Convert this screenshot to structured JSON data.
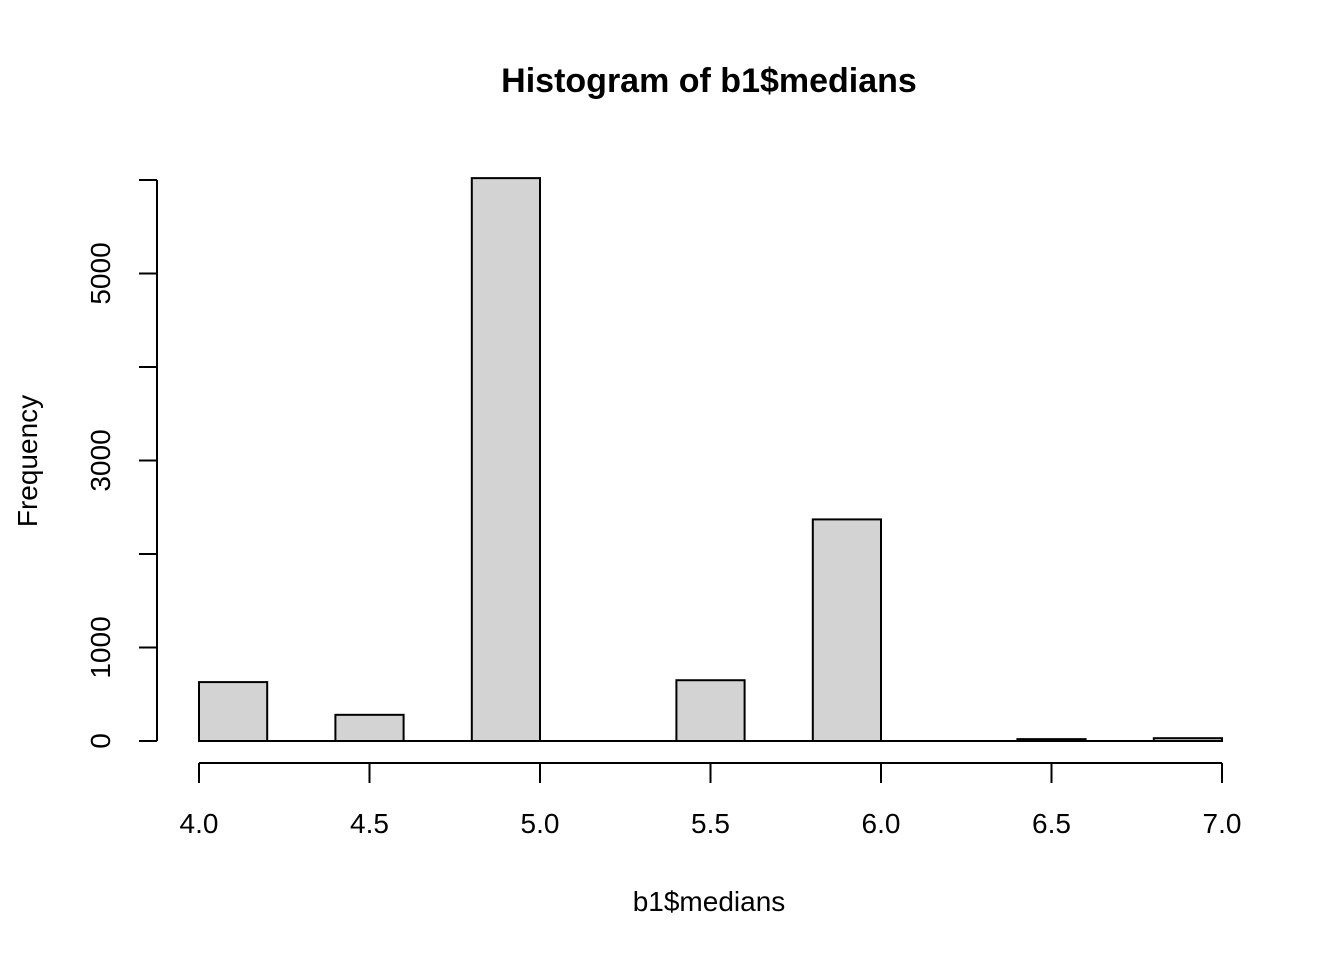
{
  "chart_data": {
    "type": "bar",
    "title": "Histogram of b1$medians",
    "xlabel": "b1$medians",
    "ylabel": "Frequency",
    "bin_width": 0.2,
    "bins": [
      {
        "start": 4.0,
        "end": 4.2,
        "count": 630
      },
      {
        "start": 4.4,
        "end": 4.6,
        "count": 280
      },
      {
        "start": 4.8,
        "end": 5.0,
        "count": 6020
      },
      {
        "start": 5.4,
        "end": 5.6,
        "count": 650
      },
      {
        "start": 5.8,
        "end": 6.0,
        "count": 2370
      },
      {
        "start": 6.4,
        "end": 6.6,
        "count": 20
      },
      {
        "start": 6.8,
        "end": 7.0,
        "count": 30
      }
    ],
    "x_ticks": [
      "4.0",
      "4.5",
      "5.0",
      "5.5",
      "6.0",
      "6.5",
      "7.0"
    ],
    "x_tick_values": [
      4.0,
      4.5,
      5.0,
      5.5,
      6.0,
      6.5,
      7.0
    ],
    "y_tick_values": [
      0,
      1000,
      2000,
      3000,
      4000,
      5000,
      6000
    ],
    "y_tick_labels": [
      "0",
      "1000",
      "",
      "3000",
      "",
      "5000",
      ""
    ],
    "xlim": [
      4.0,
      7.0
    ],
    "ylim": [
      0,
      6000
    ],
    "bar_color": "#D3D3D3",
    "border_color": "#000000",
    "grid": false
  }
}
